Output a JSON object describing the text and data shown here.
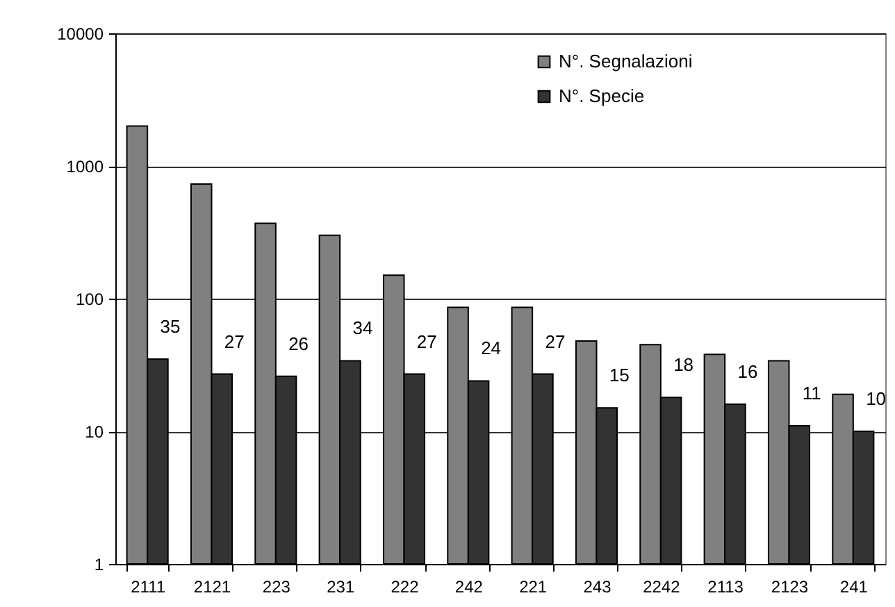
{
  "chart_data": {
    "type": "bar",
    "categories": [
      "2111",
      "2121",
      "223",
      "231",
      "222",
      "242",
      "221",
      "243",
      "2242",
      "2113",
      "2123",
      "241"
    ],
    "series": [
      {
        "name": "N°. Segnalazioni",
        "color": "#808080",
        "values": [
          2000,
          730,
          370,
          300,
          150,
          86,
          86,
          48,
          45,
          38,
          34,
          19
        ]
      },
      {
        "name": "N°. Specie",
        "color": "#333333",
        "values": [
          35,
          27,
          26,
          34,
          27,
          24,
          27,
          15,
          18,
          16,
          11,
          10
        ],
        "value_labels": [
          "35",
          "27",
          "26",
          "34",
          "27",
          "24",
          "27",
          "15",
          "18",
          "16",
          "11",
          "10"
        ]
      }
    ],
    "log": "y",
    "ylim": [
      1,
      10000
    ],
    "yticks": [
      1,
      10,
      100,
      1000,
      10000
    ],
    "grid": "y",
    "legend": "top right"
  }
}
